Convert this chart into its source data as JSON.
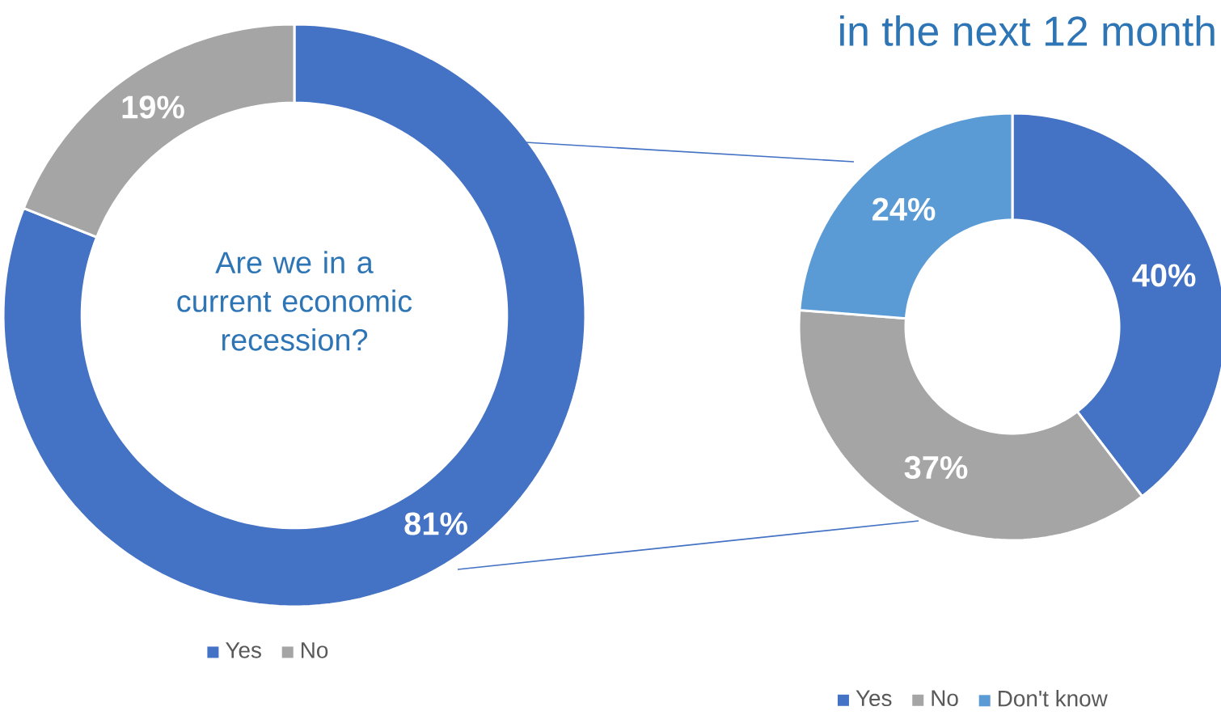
{
  "chart_data": [
    {
      "type": "donut",
      "title": "Are we in a current economic recession?",
      "categories": [
        "Yes",
        "No"
      ],
      "values": [
        81,
        19
      ],
      "colors": [
        "#4472c4",
        "#a5a5a5"
      ],
      "value_labels": [
        "81%",
        "19%"
      ],
      "legend": "bottom"
    },
    {
      "type": "donut",
      "title": "in the next 12 month",
      "categories": [
        "Yes",
        "No",
        "Don't know"
      ],
      "values": [
        40,
        37,
        24
      ],
      "colors": [
        "#4472c4",
        "#a5a5a5",
        "#5b9bd5"
      ],
      "value_labels": [
        "40%",
        "37%",
        "24%"
      ],
      "legend": "bottom"
    }
  ]
}
